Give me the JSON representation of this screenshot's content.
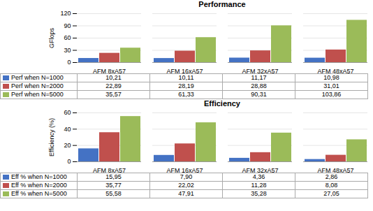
{
  "chart_data": [
    {
      "type": "bar",
      "title": "Performance",
      "y_label": "GFlops",
      "categories": [
        "AFM 8xA57",
        "AFM 16xA57",
        "AFM 32xA57",
        "AFM 48xA57"
      ],
      "series": [
        {
          "name": "Perf when N=1000",
          "color": "#4472C4",
          "values": [
            10.21,
            10.11,
            11.17,
            10.98
          ],
          "value_labels": [
            "10,21",
            "10,11",
            "11,17",
            "10,98"
          ]
        },
        {
          "name": "Perf when N=2000",
          "color": "#C0504D",
          "values": [
            22.89,
            28.19,
            28.88,
            31.01
          ],
          "value_labels": [
            "22,89",
            "28,19",
            "28,88",
            "31,01"
          ]
        },
        {
          "name": "Perf when N=5000",
          "color": "#9BBB59",
          "values": [
            35.57,
            61.33,
            90.31,
            103.86
          ],
          "value_labels": [
            "35,57",
            "61,33",
            "90,31",
            "103,86"
          ]
        }
      ],
      "ylim": [
        0,
        120
      ],
      "yticks": [
        0,
        30,
        60,
        90,
        120
      ],
      "grid": true
    },
    {
      "type": "bar",
      "title": "Efficiency",
      "y_label": "Efficiency (%)",
      "categories": [
        "AFM 8xA57",
        "AFM 16xA57",
        "AFM 32xA57",
        "AFM 48xA57"
      ],
      "series": [
        {
          "name": "Eff % when N=1000",
          "color": "#4472C4",
          "values": [
            15.95,
            7.9,
            4.36,
            2.86
          ],
          "value_labels": [
            "15,95",
            "7,90",
            "4,36",
            "2,86"
          ]
        },
        {
          "name": "Eff % when N=2000",
          "color": "#C0504D",
          "values": [
            35.77,
            22.02,
            11.28,
            8.08
          ],
          "value_labels": [
            "35,77",
            "22,02",
            "11,28",
            "8,08"
          ]
        },
        {
          "name": "Eff % when N=5000",
          "color": "#9BBB59",
          "values": [
            55.58,
            47.91,
            35.28,
            27.05
          ],
          "value_labels": [
            "55,58",
            "47,91",
            "35,28",
            "27,05"
          ]
        }
      ],
      "ylim": [
        0,
        60
      ],
      "yticks": [
        0,
        20,
        40,
        60
      ],
      "grid": true
    }
  ]
}
